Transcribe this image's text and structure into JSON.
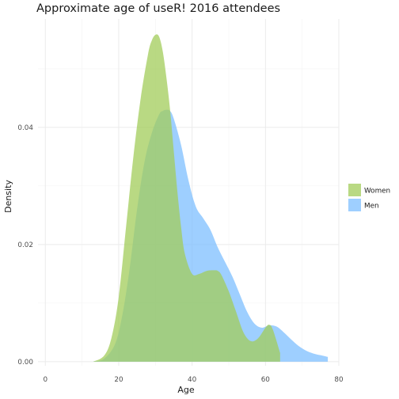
{
  "chart_data": {
    "type": "area",
    "title": "Approximate age of useR! 2016 attendees",
    "xlabel": "Age",
    "ylabel": "Density",
    "xlim": [
      -2,
      80
    ],
    "ylim": [
      -0.0007,
      0.0585
    ],
    "xticks": [
      0,
      20,
      40,
      60,
      80
    ],
    "xtick_labels": [
      "0",
      "20",
      "40",
      "60",
      "80"
    ],
    "yticks": [
      0.0,
      0.02,
      0.04
    ],
    "ytick_labels": [
      "0.00",
      "0.02",
      "0.04"
    ],
    "grid": true,
    "legend_position": "right",
    "series": [
      {
        "name": "Men",
        "color": "#7ebfff",
        "x": [
          13,
          16,
          19,
          21,
          23,
          25,
          27,
          29,
          31,
          32,
          33,
          34,
          35,
          37,
          39,
          41,
          43,
          45,
          47,
          49,
          51,
          53,
          55,
          57,
          59,
          61,
          63,
          65,
          67,
          69,
          71,
          73,
          75,
          77
        ],
        "y": [
          0.0,
          0.0005,
          0.003,
          0.008,
          0.016,
          0.026,
          0.034,
          0.039,
          0.0422,
          0.0428,
          0.043,
          0.0428,
          0.0415,
          0.037,
          0.031,
          0.0265,
          0.0245,
          0.0225,
          0.0195,
          0.017,
          0.0145,
          0.0115,
          0.0085,
          0.0065,
          0.0058,
          0.0062,
          0.006,
          0.005,
          0.0038,
          0.0027,
          0.0019,
          0.0014,
          0.0011,
          0.0008
        ]
      },
      {
        "name": "Women",
        "color": "#a2cc59",
        "x": [
          13,
          16,
          18,
          20,
          22,
          24,
          26,
          28,
          29,
          30,
          31,
          32,
          33,
          34,
          35,
          36,
          37,
          38,
          40,
          42,
          44,
          46,
          47,
          48,
          50,
          52,
          54,
          56,
          58,
          60,
          61,
          62,
          64
        ],
        "y": [
          0.0,
          0.001,
          0.004,
          0.011,
          0.023,
          0.035,
          0.045,
          0.0525,
          0.0548,
          0.0558,
          0.0555,
          0.053,
          0.0485,
          0.043,
          0.036,
          0.029,
          0.023,
          0.0185,
          0.015,
          0.015,
          0.0155,
          0.0156,
          0.0155,
          0.0148,
          0.012,
          0.0085,
          0.005,
          0.0035,
          0.004,
          0.0058,
          0.0063,
          0.0055,
          0.0015
        ]
      }
    ],
    "legend_order": [
      "Women",
      "Men"
    ]
  }
}
